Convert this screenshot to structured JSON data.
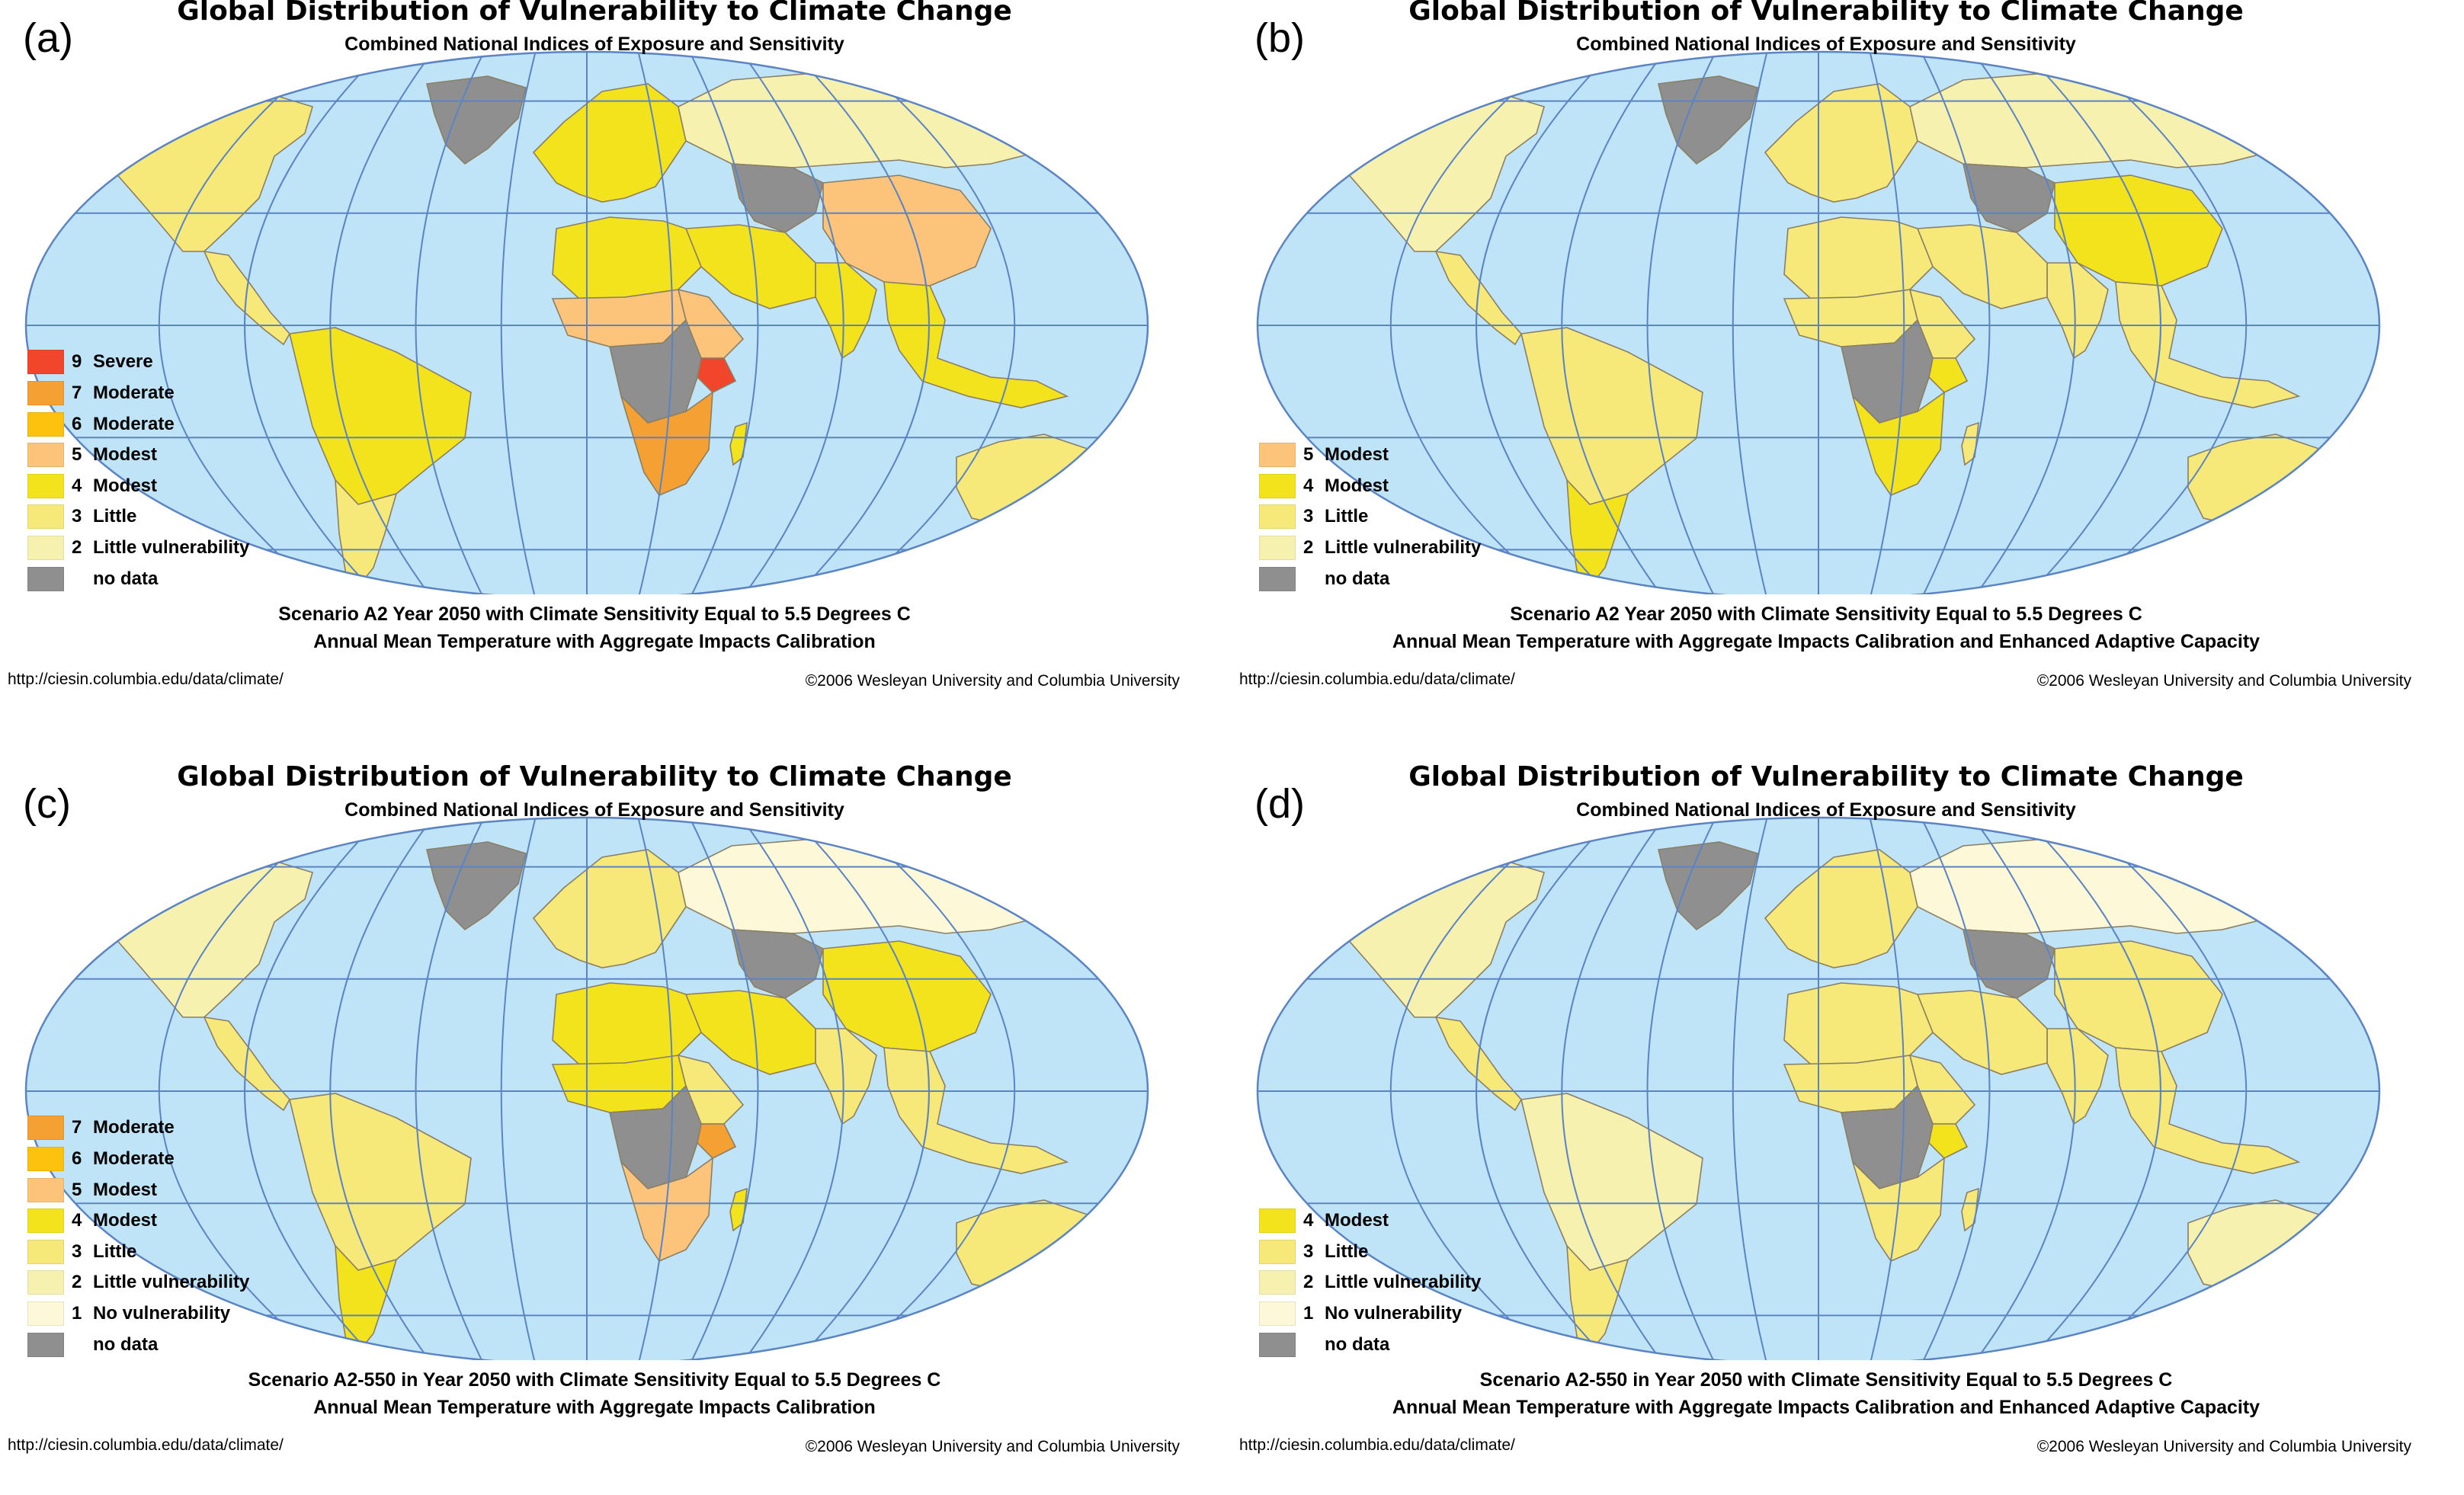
{
  "colors": {
    "ocean": "#bfe4f7",
    "grid": "#5b84c4",
    "severe_9": "#f2462c",
    "moderate_7": "#f5a033",
    "moderate_6": "#fcc20d",
    "modest_5": "#fbc47a",
    "modest_4": "#f3e31c",
    "little_3": "#f6e97a",
    "little_vulnerability_2": "#f7f1b0",
    "no_vulnerability_1": "#fdf8d8",
    "no_data": "#8f8f8f"
  },
  "panels": [
    {
      "letter": "(a)",
      "title": "Global Distribution of Vulnerability to Climate Change",
      "subtitle": "Combined National Indices of Exposure and Sensitivity",
      "legend": [
        {
          "value": "9",
          "label": "Severe",
          "color": "#f2462c"
        },
        {
          "value": "7",
          "label": "Moderate",
          "color": "#f5a033"
        },
        {
          "value": "6",
          "label": "Moderate",
          "color": "#fcc20d"
        },
        {
          "value": "5",
          "label": "Modest",
          "color": "#fbc47a"
        },
        {
          "value": "4",
          "label": "Modest",
          "color": "#f3e31c"
        },
        {
          "value": "3",
          "label": "Little",
          "color": "#f6e97a"
        },
        {
          "value": "2",
          "label": "Little vulnerability",
          "color": "#f7f1b0"
        },
        {
          "value": "",
          "label": "no data",
          "color": "#8f8f8f"
        }
      ],
      "regions": {
        "north_america": "#f6e97a",
        "greenland": "#8f8f8f",
        "central_america": "#f6e97a",
        "south_america": "#f3e31c",
        "south_cone": "#f6e97a",
        "europe": "#f3e31c",
        "russia": "#f7f1b0",
        "central_asia": "#8f8f8f",
        "china": "#fbc47a",
        "india": "#f3e31c",
        "middle_east": "#f3e31c",
        "north_africa": "#f3e31c",
        "sahel": "#fbc47a",
        "east_africa": "#fbc47a",
        "kenya": "#f2462c",
        "central_africa": "#8f8f8f",
        "southern_africa": "#f5a033",
        "southeast_asia": "#f3e31c",
        "australia": "#f6e97a",
        "new_zealand": "#f6e97a",
        "madagascar": "#f3e31c"
      },
      "scenario_line1": "Scenario A2 Year 2050 with Climate Sensitivity Equal to 5.5 Degrees C",
      "scenario_line2": "Annual Mean Temperature with Aggregate Impacts Calibration",
      "url": "http://ciesin.columbia.edu/data/climate/",
      "copyright": "©2006 Wesleyan University and Columbia University"
    },
    {
      "letter": "(b)",
      "title": "Global Distribution of Vulnerability to Climate Change",
      "subtitle": "Combined National Indices of Exposure and Sensitivity",
      "legend": [
        {
          "value": "5",
          "label": "Modest",
          "color": "#fbc47a"
        },
        {
          "value": "4",
          "label": "Modest",
          "color": "#f3e31c"
        },
        {
          "value": "3",
          "label": "Little",
          "color": "#f6e97a"
        },
        {
          "value": "2",
          "label": "Little vulnerability",
          "color": "#f7f1b0"
        },
        {
          "value": "",
          "label": "no data",
          "color": "#8f8f8f"
        }
      ],
      "regions": {
        "north_america": "#f7f1b0",
        "greenland": "#8f8f8f",
        "central_america": "#f6e97a",
        "south_america": "#f6e97a",
        "south_cone": "#f3e31c",
        "europe": "#f6e97a",
        "russia": "#f7f1b0",
        "central_asia": "#8f8f8f",
        "china": "#f3e31c",
        "india": "#f6e97a",
        "middle_east": "#f6e97a",
        "north_africa": "#f6e97a",
        "sahel": "#f6e97a",
        "east_africa": "#f6e97a",
        "kenya": "#f3e31c",
        "central_africa": "#8f8f8f",
        "southern_africa": "#f3e31c",
        "southeast_asia": "#f6e97a",
        "australia": "#f6e97a",
        "new_zealand": "#f6e97a",
        "madagascar": "#f6e97a"
      },
      "scenario_line1": "Scenario A2 Year 2050 with Climate Sensitivity Equal to 5.5 Degrees C",
      "scenario_line2": "Annual Mean Temperature with Aggregate Impacts Calibration and Enhanced Adaptive Capacity",
      "url": "http://ciesin.columbia.edu/data/climate/",
      "copyright": "©2006 Wesleyan University and Columbia University"
    },
    {
      "letter": "(c)",
      "title": "Global Distribution of Vulnerability to Climate Change",
      "subtitle": "Combined National Indices of Exposure and Sensitivity",
      "legend": [
        {
          "value": "7",
          "label": "Moderate",
          "color": "#f5a033"
        },
        {
          "value": "6",
          "label": "Moderate",
          "color": "#fcc20d"
        },
        {
          "value": "5",
          "label": "Modest",
          "color": "#fbc47a"
        },
        {
          "value": "4",
          "label": "Modest",
          "color": "#f3e31c"
        },
        {
          "value": "3",
          "label": "Little",
          "color": "#f6e97a"
        },
        {
          "value": "2",
          "label": "Little vulnerability",
          "color": "#f7f1b0"
        },
        {
          "value": "1",
          "label": "No vulnerability",
          "color": "#fdf8d8"
        },
        {
          "value": "",
          "label": "no data",
          "color": "#8f8f8f"
        }
      ],
      "regions": {
        "north_america": "#f7f1b0",
        "greenland": "#8f8f8f",
        "central_america": "#f6e97a",
        "south_america": "#f6e97a",
        "south_cone": "#f3e31c",
        "europe": "#f6e97a",
        "russia": "#fdf8d8",
        "central_asia": "#8f8f8f",
        "china": "#f3e31c",
        "india": "#f6e97a",
        "middle_east": "#f3e31c",
        "north_africa": "#f3e31c",
        "sahel": "#f3e31c",
        "east_africa": "#f6e97a",
        "kenya": "#f5a033",
        "central_africa": "#8f8f8f",
        "southern_africa": "#fbc47a",
        "southeast_asia": "#f6e97a",
        "australia": "#f6e97a",
        "new_zealand": "#f6e97a",
        "madagascar": "#f3e31c"
      },
      "scenario_line1": "Scenario A2-550 in Year 2050 with Climate Sensitivity Equal to 5.5 Degrees C",
      "scenario_line2": "Annual Mean Temperature with Aggregate Impacts Calibration",
      "url": "http://ciesin.columbia.edu/data/climate/",
      "copyright": "©2006 Wesleyan University and Columbia University"
    },
    {
      "letter": "(d)",
      "title": "Global Distribution of Vulnerability to Climate Change",
      "subtitle": "Combined National Indices of Exposure and Sensitivity",
      "legend": [
        {
          "value": "4",
          "label": "Modest",
          "color": "#f3e31c"
        },
        {
          "value": "3",
          "label": "Little",
          "color": "#f6e97a"
        },
        {
          "value": "2",
          "label": "Little vulnerability",
          "color": "#f7f1b0"
        },
        {
          "value": "1",
          "label": "No vulnerability",
          "color": "#fdf8d8"
        },
        {
          "value": "",
          "label": "no data",
          "color": "#8f8f8f"
        }
      ],
      "regions": {
        "north_america": "#f7f1b0",
        "greenland": "#8f8f8f",
        "central_america": "#f6e97a",
        "south_america": "#f7f1b0",
        "south_cone": "#f6e97a",
        "europe": "#f6e97a",
        "russia": "#fdf8d8",
        "central_asia": "#8f8f8f",
        "china": "#f6e97a",
        "india": "#f6e97a",
        "middle_east": "#f6e97a",
        "north_africa": "#f6e97a",
        "sahel": "#f6e97a",
        "east_africa": "#f6e97a",
        "kenya": "#f3e31c",
        "central_africa": "#8f8f8f",
        "southern_africa": "#f6e97a",
        "southeast_asia": "#f6e97a",
        "australia": "#f7f1b0",
        "new_zealand": "#f6e97a",
        "madagascar": "#f6e97a"
      },
      "scenario_line1": "Scenario A2-550 in Year 2050 with Climate Sensitivity Equal to 5.5 Degrees C",
      "scenario_line2": "Annual Mean Temperature with Aggregate Impacts Calibration and Enhanced Adaptive Capacity",
      "url": "http://ciesin.columbia.edu/data/climate/",
      "copyright": "©2006 Wesleyan University and Columbia University"
    }
  ]
}
